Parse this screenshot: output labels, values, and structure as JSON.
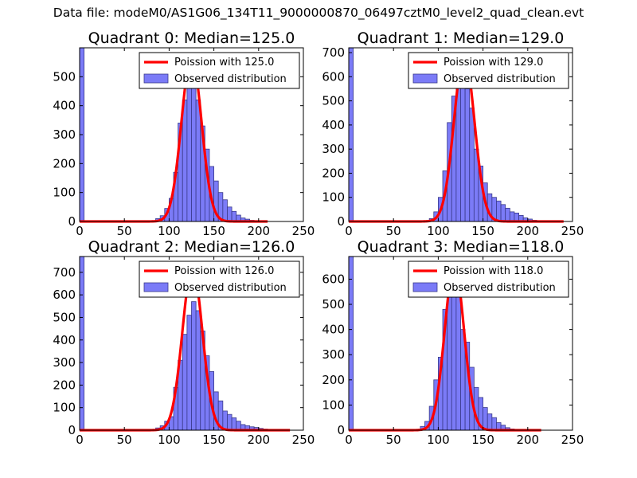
{
  "figure": {
    "suptitle": "Data file: modeM0/AS1G06_134T11_9000000870_06497cztM0_level2_quad_clean.evt",
    "colors": {
      "hist_fill": "#7b7bf7",
      "hist_edge": "#3a3a8a",
      "fit_line": "#ff0000",
      "axes": "#000000"
    }
  },
  "chart_data": [
    {
      "type": "bar",
      "title": "Quadrant 0: Median=125.0",
      "median": 125.0,
      "xlim": [
        0,
        250
      ],
      "ylim": [
        0,
        600
      ],
      "xticks": [
        0,
        50,
        100,
        150,
        200,
        250
      ],
      "yticks": [
        0,
        100,
        200,
        300,
        400,
        500
      ],
      "legend": {
        "placement": "top-right",
        "entries": [
          "Poission with 125.0",
          "Observed distribution"
        ]
      },
      "bin_width": 5,
      "bins": [
        {
          "x0": 0,
          "v": 600
        },
        {
          "x0": 80,
          "v": 3
        },
        {
          "x0": 85,
          "v": 10
        },
        {
          "x0": 90,
          "v": 20
        },
        {
          "x0": 95,
          "v": 45
        },
        {
          "x0": 100,
          "v": 80
        },
        {
          "x0": 105,
          "v": 170
        },
        {
          "x0": 110,
          "v": 340
        },
        {
          "x0": 115,
          "v": 420
        },
        {
          "x0": 120,
          "v": 500
        },
        {
          "x0": 125,
          "v": 460
        },
        {
          "x0": 130,
          "v": 420
        },
        {
          "x0": 135,
          "v": 330
        },
        {
          "x0": 140,
          "v": 250
        },
        {
          "x0": 145,
          "v": 190
        },
        {
          "x0": 150,
          "v": 140
        },
        {
          "x0": 155,
          "v": 100
        },
        {
          "x0": 160,
          "v": 75
        },
        {
          "x0": 165,
          "v": 50
        },
        {
          "x0": 170,
          "v": 35
        },
        {
          "x0": 175,
          "v": 22
        },
        {
          "x0": 180,
          "v": 12
        },
        {
          "x0": 185,
          "v": 8
        },
        {
          "x0": 190,
          "v": 4
        },
        {
          "x0": 195,
          "v": 2
        },
        {
          "x0": 200,
          "v": 1
        }
      ],
      "fit": {
        "label": "Poission with 125.0",
        "mean": 125.0,
        "peak": 570,
        "sigma": 11.2,
        "x_range": [
          0,
          210
        ]
      }
    },
    {
      "type": "bar",
      "title": "Quadrant 1: Median=129.0",
      "median": 129.0,
      "xlim": [
        0,
        250
      ],
      "ylim": [
        0,
        720
      ],
      "xticks": [
        0,
        50,
        100,
        150,
        200,
        250
      ],
      "yticks": [
        0,
        100,
        200,
        300,
        400,
        500,
        600,
        700
      ],
      "legend": {
        "placement": "top-right",
        "entries": [
          "Poission with 129.0",
          "Observed distribution"
        ]
      },
      "bin_width": 5,
      "bins": [
        {
          "x0": 0,
          "v": 720
        },
        {
          "x0": 85,
          "v": 3
        },
        {
          "x0": 90,
          "v": 12
        },
        {
          "x0": 95,
          "v": 40
        },
        {
          "x0": 100,
          "v": 100
        },
        {
          "x0": 105,
          "v": 210
        },
        {
          "x0": 110,
          "v": 410
        },
        {
          "x0": 115,
          "v": 520
        },
        {
          "x0": 120,
          "v": 570
        },
        {
          "x0": 125,
          "v": 580
        },
        {
          "x0": 130,
          "v": 550
        },
        {
          "x0": 135,
          "v": 470
        },
        {
          "x0": 140,
          "v": 300
        },
        {
          "x0": 145,
          "v": 230
        },
        {
          "x0": 150,
          "v": 160
        },
        {
          "x0": 155,
          "v": 115
        },
        {
          "x0": 160,
          "v": 100
        },
        {
          "x0": 165,
          "v": 85
        },
        {
          "x0": 170,
          "v": 70
        },
        {
          "x0": 175,
          "v": 55
        },
        {
          "x0": 180,
          "v": 40
        },
        {
          "x0": 185,
          "v": 35
        },
        {
          "x0": 190,
          "v": 25
        },
        {
          "x0": 195,
          "v": 15
        },
        {
          "x0": 200,
          "v": 10
        },
        {
          "x0": 205,
          "v": 5
        },
        {
          "x0": 210,
          "v": 3
        }
      ],
      "fit": {
        "label": "Poission with 129.0",
        "mean": 129.0,
        "peak": 690,
        "sigma": 11.4,
        "x_range": [
          0,
          240
        ]
      }
    },
    {
      "type": "bar",
      "title": "Quadrant 2: Median=126.0",
      "median": 126.0,
      "xlim": [
        0,
        250
      ],
      "ylim": [
        0,
        770
      ],
      "xticks": [
        0,
        50,
        100,
        150,
        200,
        250
      ],
      "yticks": [
        0,
        100,
        200,
        300,
        400,
        500,
        600,
        700
      ],
      "legend": {
        "placement": "top-right",
        "entries": [
          "Poission with 126.0",
          "Observed distribution"
        ]
      },
      "bin_width": 5,
      "bins": [
        {
          "x0": 0,
          "v": 770
        },
        {
          "x0": 80,
          "v": 3
        },
        {
          "x0": 85,
          "v": 10
        },
        {
          "x0": 90,
          "v": 20
        },
        {
          "x0": 95,
          "v": 40
        },
        {
          "x0": 100,
          "v": 60
        },
        {
          "x0": 105,
          "v": 190
        },
        {
          "x0": 110,
          "v": 310
        },
        {
          "x0": 115,
          "v": 425
        },
        {
          "x0": 120,
          "v": 510
        },
        {
          "x0": 125,
          "v": 570
        },
        {
          "x0": 130,
          "v": 530
        },
        {
          "x0": 135,
          "v": 440
        },
        {
          "x0": 140,
          "v": 330
        },
        {
          "x0": 145,
          "v": 260
        },
        {
          "x0": 150,
          "v": 170
        },
        {
          "x0": 155,
          "v": 130
        },
        {
          "x0": 160,
          "v": 85
        },
        {
          "x0": 165,
          "v": 70
        },
        {
          "x0": 170,
          "v": 55
        },
        {
          "x0": 175,
          "v": 40
        },
        {
          "x0": 180,
          "v": 25
        },
        {
          "x0": 185,
          "v": 20
        },
        {
          "x0": 190,
          "v": 15
        },
        {
          "x0": 195,
          "v": 12
        },
        {
          "x0": 200,
          "v": 8
        },
        {
          "x0": 205,
          "v": 5
        },
        {
          "x0": 210,
          "v": 3
        }
      ],
      "fit": {
        "label": "Poission with 126.0",
        "mean": 126.0,
        "peak": 720,
        "sigma": 11.2,
        "x_range": [
          0,
          235
        ]
      }
    },
    {
      "type": "bar",
      "title": "Quadrant 3: Median=118.0",
      "median": 118.0,
      "xlim": [
        0,
        250
      ],
      "ylim": [
        0,
        690
      ],
      "xticks": [
        0,
        50,
        100,
        150,
        200,
        250
      ],
      "yticks": [
        0,
        100,
        200,
        300,
        400,
        500,
        600
      ],
      "legend": {
        "placement": "top-right",
        "entries": [
          "Poission with 118.0",
          "Observed distribution"
        ]
      },
      "bin_width": 5,
      "bins": [
        {
          "x0": 0,
          "v": 690
        },
        {
          "x0": 75,
          "v": 3
        },
        {
          "x0": 80,
          "v": 15
        },
        {
          "x0": 85,
          "v": 35
        },
        {
          "x0": 90,
          "v": 95
        },
        {
          "x0": 95,
          "v": 200
        },
        {
          "x0": 100,
          "v": 290
        },
        {
          "x0": 105,
          "v": 480
        },
        {
          "x0": 110,
          "v": 560
        },
        {
          "x0": 115,
          "v": 580
        },
        {
          "x0": 120,
          "v": 540
        },
        {
          "x0": 125,
          "v": 400
        },
        {
          "x0": 130,
          "v": 350
        },
        {
          "x0": 135,
          "v": 250
        },
        {
          "x0": 140,
          "v": 170
        },
        {
          "x0": 145,
          "v": 130
        },
        {
          "x0": 150,
          "v": 90
        },
        {
          "x0": 155,
          "v": 65
        },
        {
          "x0": 160,
          "v": 50
        },
        {
          "x0": 165,
          "v": 30
        },
        {
          "x0": 170,
          "v": 20
        },
        {
          "x0": 175,
          "v": 10
        },
        {
          "x0": 180,
          "v": 5
        },
        {
          "x0": 185,
          "v": 3
        }
      ],
      "fit": {
        "label": "Poission with 118.0",
        "mean": 118.0,
        "peak": 655,
        "sigma": 10.8,
        "x_range": [
          0,
          215
        ]
      }
    }
  ]
}
